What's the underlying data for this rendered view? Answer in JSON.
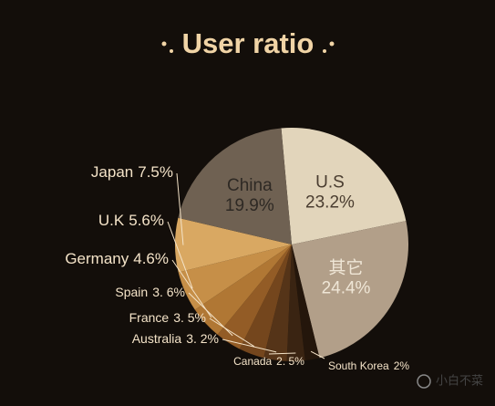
{
  "chart_data": {
    "type": "pie",
    "title": "User ratio",
    "categories": [
      "U.S",
      "其它",
      "South Korea",
      "Canada",
      "Australia",
      "France",
      "Spain",
      "Germany",
      "U.K",
      "Japan",
      "China"
    ],
    "values": [
      23.2,
      24.4,
      2,
      2.5,
      3.2,
      3.5,
      3.6,
      4.6,
      5.6,
      7.5,
      19.9
    ],
    "value_labels": [
      "23.2%",
      "24.4%",
      "2%",
      "2. 5%",
      "3. 2%",
      "3. 5%",
      "3. 6%",
      "4.6%",
      "5.6%",
      "7.5%",
      "19.9%"
    ],
    "colors": [
      "#e2d5bb",
      "#b29f89",
      "#24160b",
      "#3a2412",
      "#553418",
      "#74461d",
      "#935c26",
      "#b07734",
      "#c68f48",
      "#d9a862",
      "#6f6152"
    ]
  },
  "watermark": "小白不菜"
}
